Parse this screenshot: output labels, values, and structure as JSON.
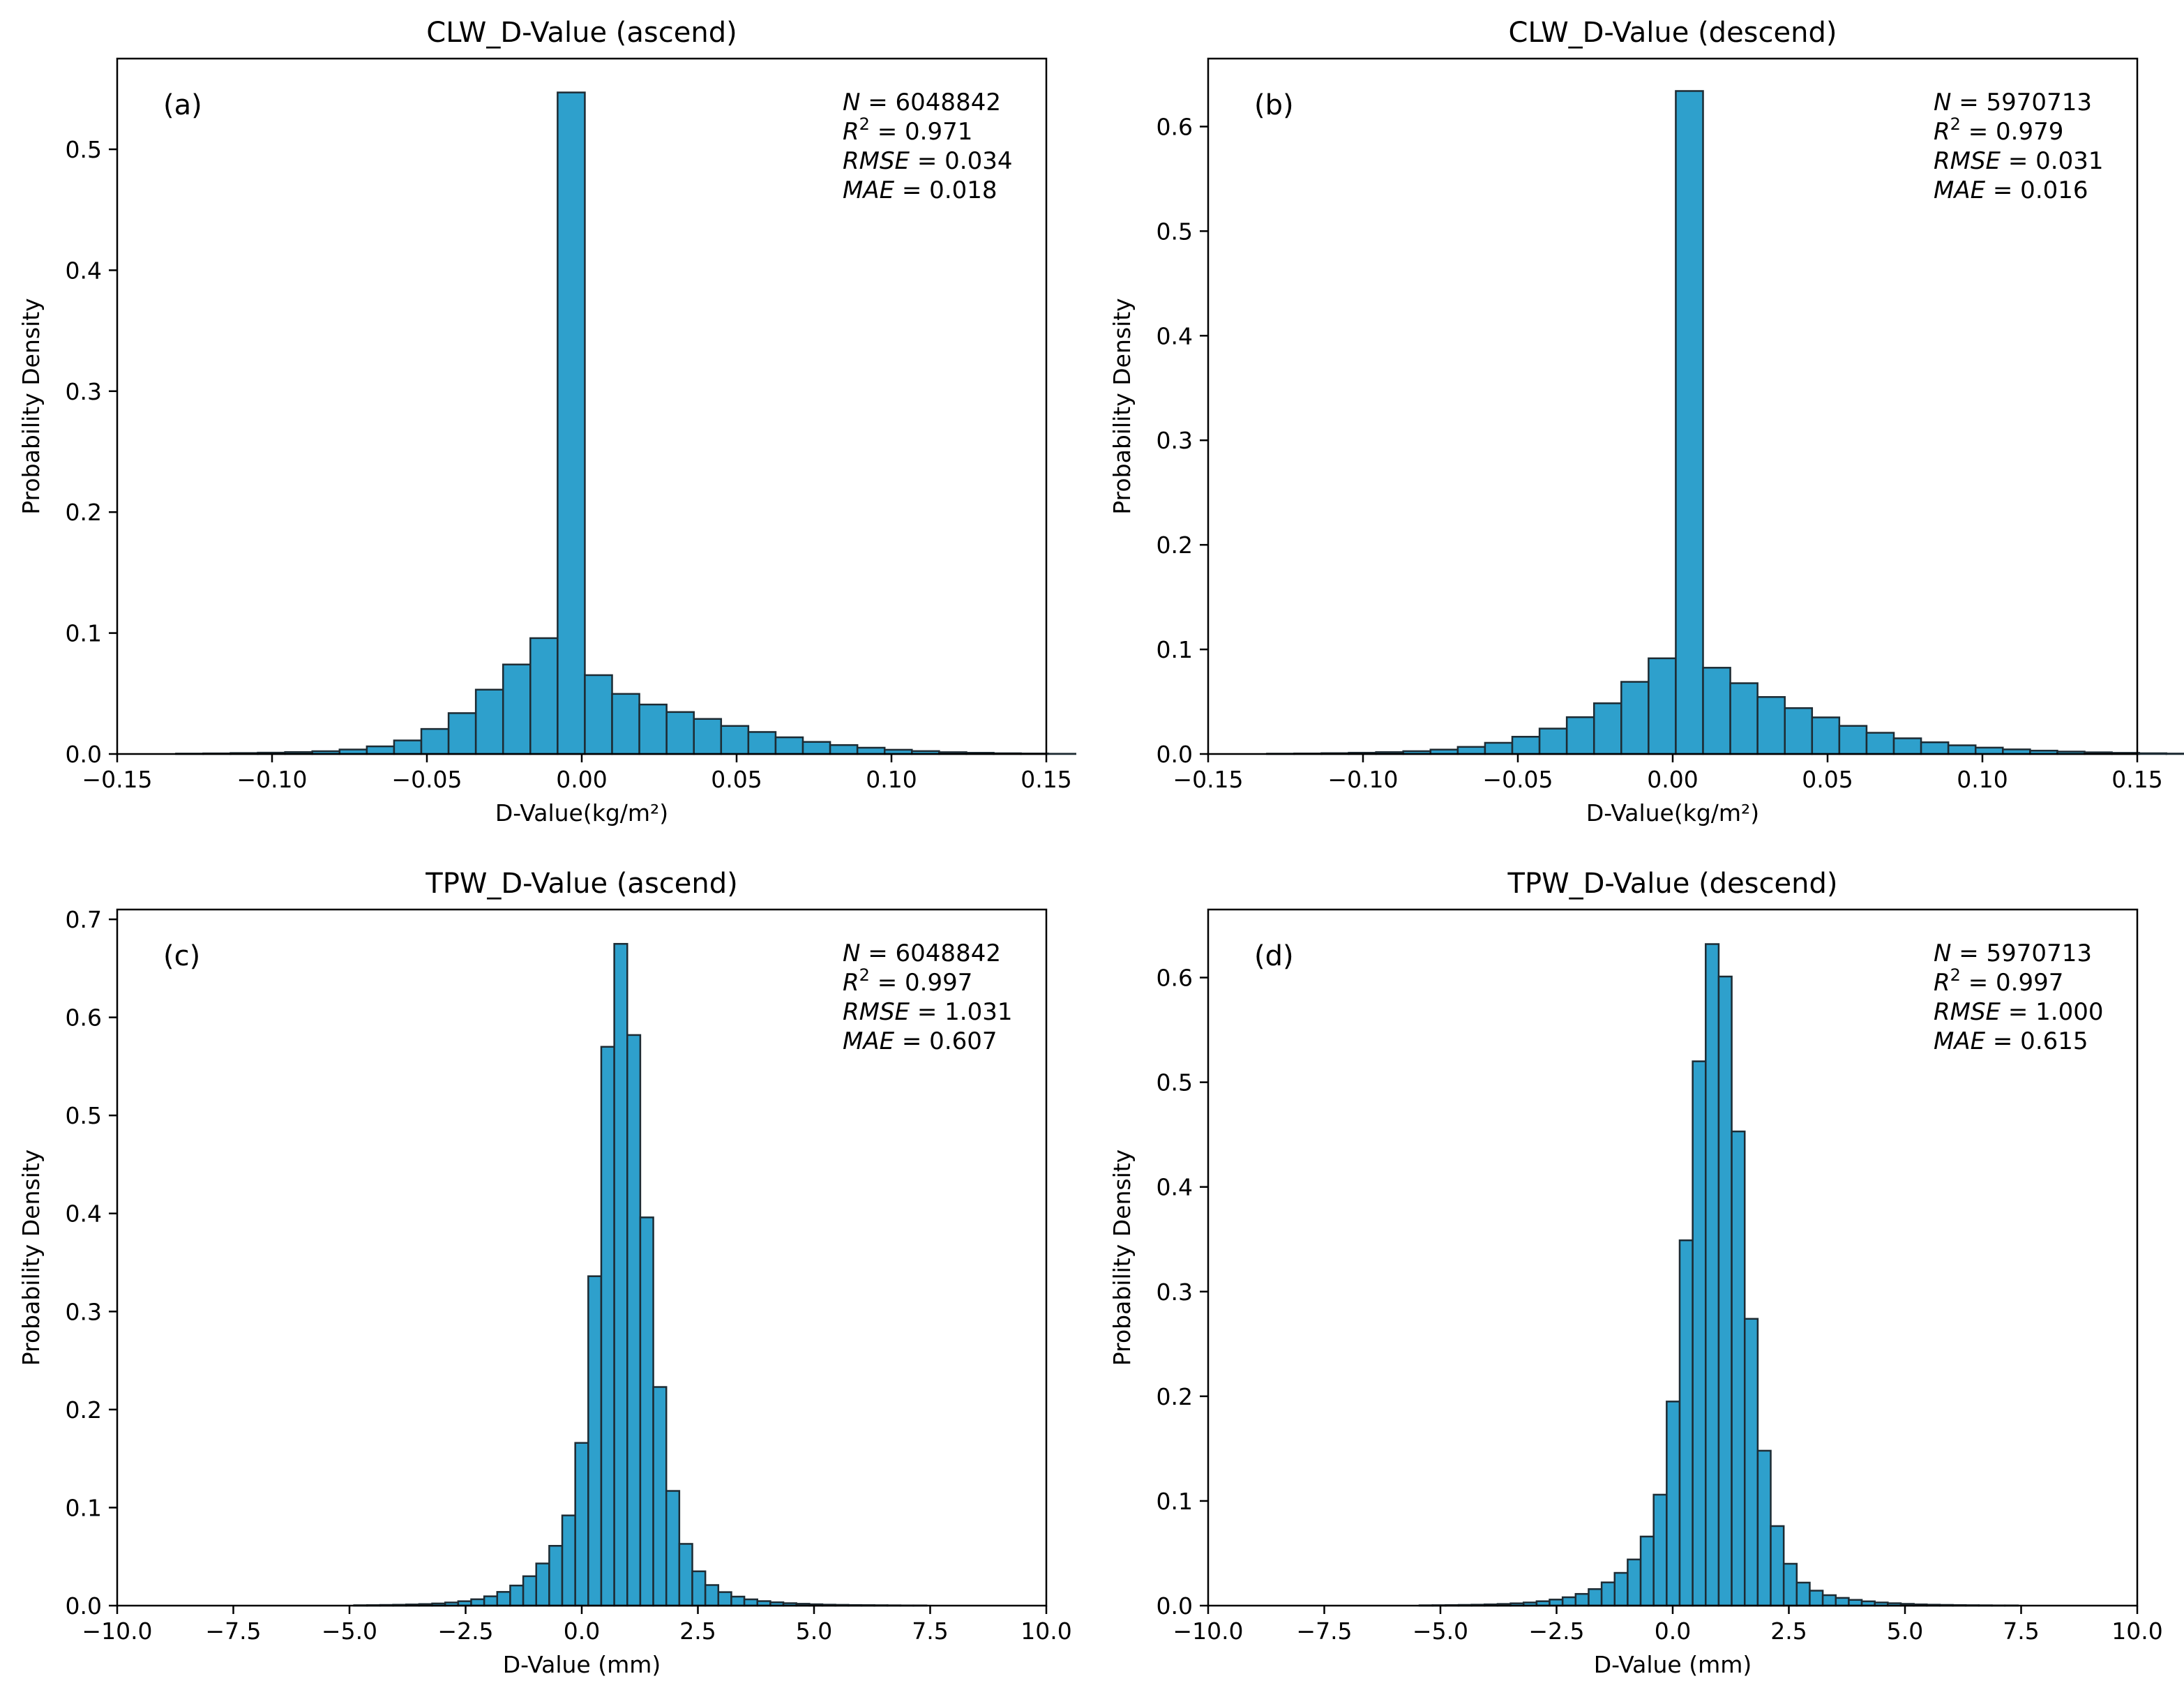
{
  "chart_data": [
    {
      "type": "bar",
      "panel_label": "(a)",
      "title": "CLW_D-Value (ascend)",
      "xlabel": "D-Value(kg/m²)",
      "ylabel": "Probability Density",
      "xlim": [
        -0.15,
        0.15
      ],
      "ylim": [
        0,
        0.575
      ],
      "xticks": [
        "−0.15",
        "−0.10",
        "−0.05",
        "0.00",
        "0.05",
        "0.10",
        "0.15"
      ],
      "yticks": [
        "0.0",
        "0.1",
        "0.2",
        "0.3",
        "0.4",
        "0.5"
      ],
      "stats": {
        "n_label": "N",
        "n_value": "= 6048842",
        "r2_label": "R",
        "r2_sup": "2",
        "r2_value": "= 0.971",
        "rmse_label": "RMSE",
        "rmse_value": "= 0.034",
        "mae_label": "MAE",
        "mae_value": "= 0.018"
      },
      "bin_start": -0.131,
      "bin_width": 0.0088,
      "values": [
        0.0003,
        0.0005,
        0.0008,
        0.0011,
        0.0016,
        0.0023,
        0.0037,
        0.0063,
        0.0112,
        0.0207,
        0.0338,
        0.0532,
        0.074,
        0.0958,
        0.547,
        0.0652,
        0.0497,
        0.0409,
        0.0347,
        0.029,
        0.0232,
        0.0182,
        0.0138,
        0.01,
        0.0074,
        0.0052,
        0.0035,
        0.0024,
        0.0015,
        0.001,
        0.0006,
        0.0004,
        0.0002
      ]
    },
    {
      "type": "bar",
      "panel_label": "(b)",
      "title": "CLW_D-Value (descend)",
      "xlabel": "D-Value(kg/m²)",
      "ylabel": "Probability Density",
      "xlim": [
        -0.15,
        0.15
      ],
      "ylim": [
        0,
        0.665
      ],
      "xticks": [
        "−0.15",
        "−0.10",
        "−0.05",
        "0.00",
        "0.05",
        "0.10",
        "0.15"
      ],
      "yticks": [
        "0.0",
        "0.1",
        "0.2",
        "0.3",
        "0.4",
        "0.5",
        "0.6"
      ],
      "stats": {
        "n_label": "N",
        "n_value": "= 5970713",
        "r2_label": "R",
        "r2_sup": "2",
        "r2_value": "= 0.979",
        "rmse_label": "RMSE",
        "rmse_value": "= 0.031",
        "mae_label": "MAE",
        "mae_value": "= 0.016"
      },
      "bin_start": -0.131,
      "bin_width": 0.0088,
      "values": [
        0.0003,
        0.0005,
        0.0008,
        0.0012,
        0.0018,
        0.0027,
        0.0042,
        0.0068,
        0.0107,
        0.0165,
        0.0243,
        0.0352,
        0.0485,
        0.069,
        0.0915,
        0.634,
        0.0825,
        0.0677,
        0.0545,
        0.0439,
        0.035,
        0.0269,
        0.0203,
        0.015,
        0.0112,
        0.0083,
        0.0061,
        0.0044,
        0.0032,
        0.0023,
        0.0016,
        0.0011,
        0.0007,
        0.0004
      ]
    },
    {
      "type": "bar",
      "panel_label": "(c)",
      "title": "TPW_D-Value (ascend)",
      "xlabel": "D-Value (mm)",
      "ylabel": "Probability Density",
      "xlim": [
        -10.0,
        10.0
      ],
      "ylim": [
        0,
        0.71
      ],
      "xticks": [
        "−10.0",
        "−7.5",
        "−5.0",
        "−2.5",
        "0.0",
        "2.5",
        "5.0",
        "7.5",
        "10.0"
      ],
      "yticks": [
        "0.0",
        "0.1",
        "0.2",
        "0.3",
        "0.4",
        "0.5",
        "0.6",
        "0.7"
      ],
      "stats": {
        "n_label": "N",
        "n_value": "= 6048842",
        "r2_label": "R",
        "r2_sup": "2",
        "r2_value": "= 0.997",
        "rmse_label": "RMSE",
        "rmse_value": "= 1.031",
        "mae_label": "MAE",
        "mae_value": "= 0.607"
      },
      "bin_start": -4.9,
      "bin_width": 0.28,
      "values": [
        0.0004,
        0.0005,
        0.0007,
        0.0009,
        0.0012,
        0.0016,
        0.0022,
        0.0032,
        0.0045,
        0.0065,
        0.0095,
        0.014,
        0.0205,
        0.03,
        0.043,
        0.061,
        0.092,
        0.166,
        0.336,
        0.57,
        0.675,
        0.582,
        0.396,
        0.223,
        0.117,
        0.063,
        0.035,
        0.021,
        0.0138,
        0.0092,
        0.0064,
        0.0046,
        0.0034,
        0.0025,
        0.0019,
        0.0014,
        0.001,
        0.0008,
        0.0006,
        0.0005,
        0.0004,
        0.0003,
        0.0002,
        0.0002
      ]
    },
    {
      "type": "bar",
      "panel_label": "(d)",
      "title": "TPW_D-Value (descend)",
      "xlabel": "D-Value (mm)",
      "ylabel": "Probability Density",
      "xlim": [
        -10.0,
        10.0
      ],
      "ylim": [
        0,
        0.665
      ],
      "xticks": [
        "−10.0",
        "−7.5",
        "−5.0",
        "−2.5",
        "0.0",
        "2.5",
        "5.0",
        "7.5",
        "10.0"
      ],
      "yticks": [
        "0.0",
        "0.1",
        "0.2",
        "0.3",
        "0.4",
        "0.5",
        "0.6"
      ],
      "stats": {
        "n_label": "N",
        "n_value": "= 5970713",
        "r2_label": "R",
        "r2_sup": "2",
        "r2_value": "= 0.997",
        "rmse_label": "RMSE",
        "rmse_value": "= 1.000",
        "mae_label": "MAE",
        "mae_value": "= 0.615"
      },
      "bin_start": -5.45,
      "bin_width": 0.28,
      "values": [
        0.0003,
        0.0004,
        0.0005,
        0.0007,
        0.0009,
        0.0012,
        0.0016,
        0.0022,
        0.003,
        0.0042,
        0.0058,
        0.008,
        0.0112,
        0.0158,
        0.0222,
        0.0313,
        0.0441,
        0.066,
        0.106,
        0.195,
        0.349,
        0.52,
        0.632,
        0.601,
        0.453,
        0.274,
        0.148,
        0.076,
        0.04,
        0.022,
        0.0143,
        0.01,
        0.0074,
        0.0055,
        0.0041,
        0.003,
        0.0023,
        0.0017,
        0.0012,
        0.0009,
        0.0007,
        0.0005,
        0.0004,
        0.0003,
        0.0002,
        0.0002
      ]
    }
  ]
}
